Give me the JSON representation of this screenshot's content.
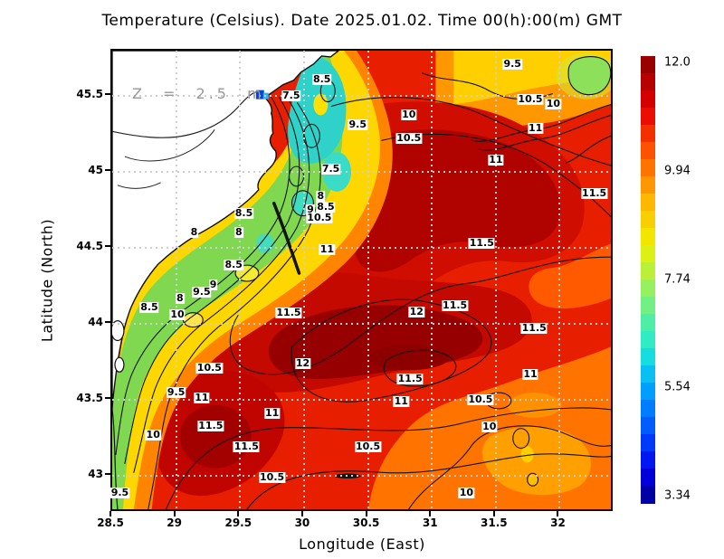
{
  "chart_data": {
    "type": "heatmap",
    "title": "Temperature (Celsius). Date 2025.01.02. Time 00(h):00(m) GMT",
    "variable": "Temperature (Celsius)",
    "date": "2025.01.02",
    "time": "00(h):00(m) GMT",
    "depth_label": "Z = 2.5 m",
    "xlabel": "Longitude (East)",
    "ylabel": "Latitude (North)",
    "xlim": [
      28.5,
      32.4
    ],
    "ylim": [
      42.78,
      45.8
    ],
    "grid": true,
    "x_ticks": {
      "values": [
        28.5,
        29,
        29.5,
        30,
        30.5,
        31,
        31.5,
        32
      ],
      "labels": [
        "28.5",
        "29",
        "29.5",
        "30",
        "30.5",
        "31",
        "31.5",
        "32"
      ]
    },
    "y_ticks": {
      "values": [
        45.5,
        45,
        44.5,
        44,
        43.5,
        43
      ],
      "labels": [
        "45.5",
        "45",
        "44.5",
        "44",
        "43.5",
        "43"
      ]
    },
    "grid_lons": [
      29,
      29.5,
      30,
      30.5,
      31,
      31.5,
      32
    ],
    "grid_lats": [
      43,
      43.5,
      44,
      44.5,
      45,
      45.5
    ],
    "colorbar": {
      "min": 3.34,
      "max": 12.0,
      "tick_labels": [
        "12.0",
        "9.94",
        "7.74",
        "5.54",
        "3.34"
      ],
      "steps": 26,
      "palette_stops": [
        [
          0.0,
          "#00008b"
        ],
        [
          0.07,
          "#0000e8"
        ],
        [
          0.16,
          "#0050ff"
        ],
        [
          0.26,
          "#00a8ff"
        ],
        [
          0.34,
          "#1ce8d8"
        ],
        [
          0.42,
          "#5cf09a"
        ],
        [
          0.5,
          "#aaf04c"
        ],
        [
          0.58,
          "#f0f000"
        ],
        [
          0.68,
          "#ffb400"
        ],
        [
          0.78,
          "#ff5a00"
        ],
        [
          0.88,
          "#e60000"
        ],
        [
          1.0,
          "#8b0000"
        ]
      ]
    },
    "contour_interval": 0.5,
    "contour_labels": [
      {
        "value": "8.5",
        "lon": 30.14,
        "lat": 45.61
      },
      {
        "value": "7.5",
        "lon": 29.9,
        "lat": 45.5
      },
      {
        "value": "9.5",
        "lon": 31.63,
        "lat": 45.71
      },
      {
        "value": "10.5",
        "lon": 31.77,
        "lat": 45.48
      },
      {
        "value": "10",
        "lon": 31.95,
        "lat": 45.45
      },
      {
        "value": "10",
        "lon": 30.82,
        "lat": 45.38
      },
      {
        "value": "9.5",
        "lon": 30.42,
        "lat": 45.31
      },
      {
        "value": "10.5",
        "lon": 30.82,
        "lat": 45.22
      },
      {
        "value": "11",
        "lon": 31.81,
        "lat": 45.29
      },
      {
        "value": "11",
        "lon": 31.5,
        "lat": 45.08
      },
      {
        "value": "11.5",
        "lon": 32.27,
        "lat": 44.86
      },
      {
        "value": "7.5",
        "lon": 30.21,
        "lat": 45.02
      },
      {
        "value": "8",
        "lon": 30.13,
        "lat": 44.84
      },
      {
        "value": "9",
        "lon": 30.05,
        "lat": 44.75
      },
      {
        "value": "8.5",
        "lon": 30.17,
        "lat": 44.77
      },
      {
        "value": "10.5",
        "lon": 30.12,
        "lat": 44.7
      },
      {
        "value": "8.5",
        "lon": 29.53,
        "lat": 44.73
      },
      {
        "value": "8",
        "lon": 29.14,
        "lat": 44.6
      },
      {
        "value": "8",
        "lon": 29.49,
        "lat": 44.6
      },
      {
        "value": "11",
        "lon": 30.18,
        "lat": 44.49
      },
      {
        "value": "11.5",
        "lon": 31.39,
        "lat": 44.53
      },
      {
        "value": "8.5",
        "lon": 29.45,
        "lat": 44.39
      },
      {
        "value": "9",
        "lon": 29.29,
        "lat": 44.26
      },
      {
        "value": "9.5",
        "lon": 29.2,
        "lat": 44.21
      },
      {
        "value": "8",
        "lon": 29.03,
        "lat": 44.17
      },
      {
        "value": "8.5",
        "lon": 28.79,
        "lat": 44.11
      },
      {
        "value": "10",
        "lon": 29.01,
        "lat": 44.06
      },
      {
        "value": "11.5",
        "lon": 29.88,
        "lat": 44.07
      },
      {
        "value": "12",
        "lon": 30.88,
        "lat": 44.08
      },
      {
        "value": "11.5",
        "lon": 31.18,
        "lat": 44.12
      },
      {
        "value": "11.5",
        "lon": 31.8,
        "lat": 43.97
      },
      {
        "value": "11",
        "lon": 31.77,
        "lat": 43.67
      },
      {
        "value": "10.5",
        "lon": 29.26,
        "lat": 43.71
      },
      {
        "value": "12",
        "lon": 29.99,
        "lat": 43.74
      },
      {
        "value": "9.5",
        "lon": 29.0,
        "lat": 43.55
      },
      {
        "value": "11",
        "lon": 29.2,
        "lat": 43.51
      },
      {
        "value": "11",
        "lon": 29.75,
        "lat": 43.41
      },
      {
        "value": "11.5",
        "lon": 29.27,
        "lat": 43.33
      },
      {
        "value": "11.5",
        "lon": 29.55,
        "lat": 43.19
      },
      {
        "value": "10.5",
        "lon": 30.5,
        "lat": 43.19
      },
      {
        "value": "10",
        "lon": 28.82,
        "lat": 43.27
      },
      {
        "value": "11",
        "lon": 30.76,
        "lat": 43.49
      },
      {
        "value": "11.5",
        "lon": 30.83,
        "lat": 43.64
      },
      {
        "value": "10.5",
        "lon": 31.38,
        "lat": 43.5
      },
      {
        "value": "10",
        "lon": 31.45,
        "lat": 43.32
      },
      {
        "value": "10.5",
        "lon": 29.75,
        "lat": 42.99
      },
      {
        "value": "10",
        "lon": 31.27,
        "lat": 42.89
      },
      {
        "value": "9.5",
        "lon": 28.56,
        "lat": 42.89
      }
    ]
  }
}
